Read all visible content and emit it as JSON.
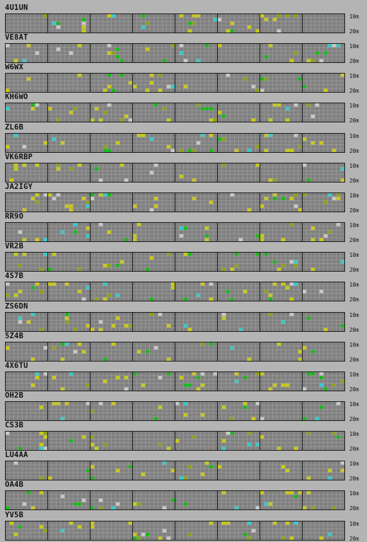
{
  "bands": {
    "top": "10m",
    "bottom": "20m"
  },
  "colors": {
    "background": "#b4b4b4",
    "grid_fill": "#808080",
    "grid_line": "#a2a2a2",
    "grid_border": "#1e1e1e",
    "signal_yellow": "#c8c81e",
    "signal_green": "#1eb41e",
    "signal_cyan": "#3cc8c8",
    "signal_light": "#c8c8c8",
    "signal_olive": "#8ca01e"
  },
  "stations": [
    {
      "call": "4U1UN"
    },
    {
      "call": "VE8AT"
    },
    {
      "call": "W6WX"
    },
    {
      "call": "KH6WO"
    },
    {
      "call": "ZL6B"
    },
    {
      "call": "VK6RBP"
    },
    {
      "call": "JA2IGY"
    },
    {
      "call": "RR9O"
    },
    {
      "call": "VR2B"
    },
    {
      "call": "4S7B"
    },
    {
      "call": "ZS6DN"
    },
    {
      "call": "5Z4B"
    },
    {
      "call": "4X6TU"
    },
    {
      "call": "OH2B"
    },
    {
      "call": "CS3B"
    },
    {
      "call": "LU4AA"
    },
    {
      "call": "OA4B"
    },
    {
      "call": "YV5B"
    }
  ]
}
